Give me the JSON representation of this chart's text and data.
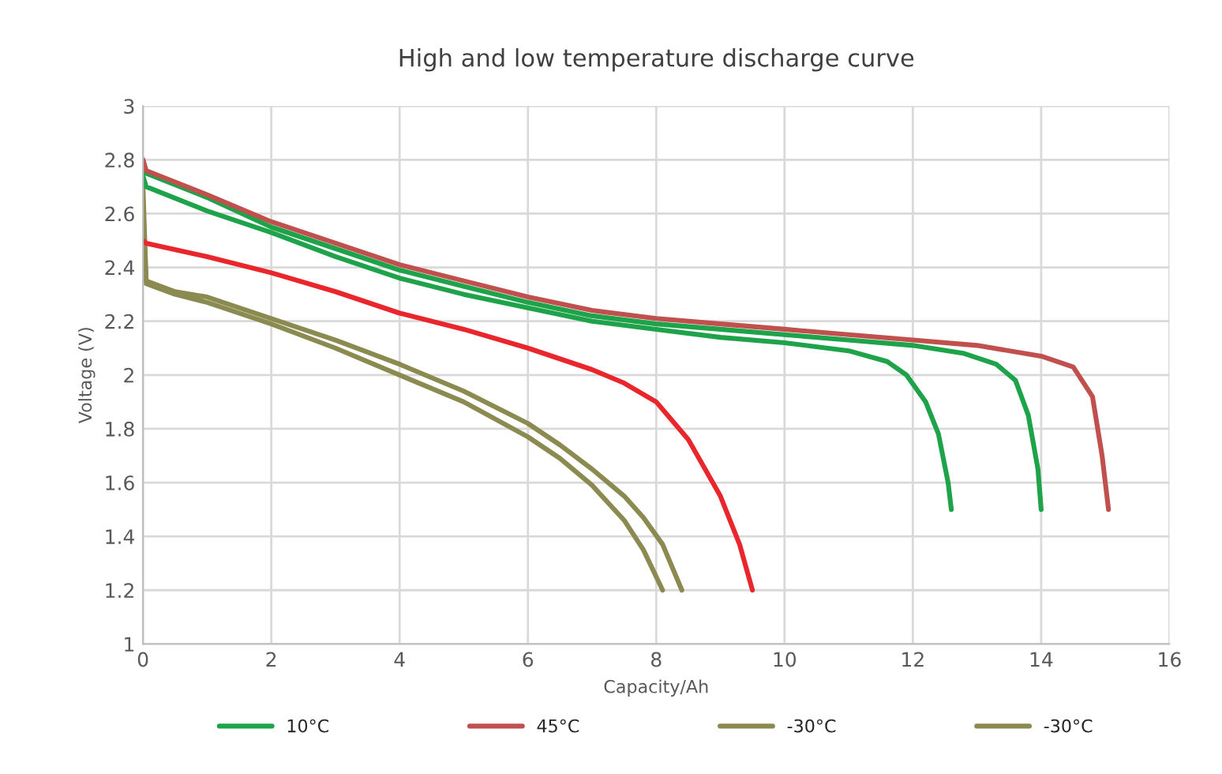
{
  "chart_data": {
    "type": "line",
    "title": "High and low temperature discharge curve",
    "xlabel": "Capacity/Ah",
    "ylabel": "Voltage (V)",
    "xlim": [
      0,
      16
    ],
    "xticks": [
      0,
      2,
      4,
      6,
      8,
      10,
      12,
      14,
      16
    ],
    "ylim": [
      1,
      3
    ],
    "yticks": [
      1,
      1.2,
      1.4,
      1.6,
      1.8,
      2,
      2.2,
      2.4,
      2.6,
      2.8,
      3
    ],
    "grid": true,
    "legend": "bottom",
    "marker": "none",
    "line_style": "solid",
    "series": [
      {
        "name": "10°C",
        "color": "#1fa34a",
        "x": [
          0,
          0.05,
          1,
          2,
          3,
          4,
          5,
          6,
          7,
          8,
          9,
          10,
          11,
          12,
          12.8,
          13.3,
          13.6,
          13.8,
          13.95,
          14
        ],
        "values": [
          2.8,
          2.75,
          2.66,
          2.55,
          2.47,
          2.39,
          2.33,
          2.27,
          2.22,
          2.19,
          2.17,
          2.15,
          2.13,
          2.11,
          2.08,
          2.04,
          1.98,
          1.85,
          1.65,
          1.5
        ]
      },
      {
        "name": "45°C",
        "color": "#c0504d",
        "x": [
          0,
          0.05,
          1,
          2,
          3,
          4,
          5,
          6,
          7,
          8,
          9,
          10,
          11,
          12,
          13,
          14,
          14.5,
          14.8,
          14.95,
          15.05
        ],
        "values": [
          2.8,
          2.76,
          2.67,
          2.57,
          2.49,
          2.41,
          2.35,
          2.29,
          2.24,
          2.21,
          2.19,
          2.17,
          2.15,
          2.13,
          2.11,
          2.07,
          2.03,
          1.92,
          1.7,
          1.5
        ]
      },
      {
        "name": "-30°C",
        "color": "#8b8a50",
        "x": [
          0,
          0.05,
          0.5,
          1,
          2,
          3,
          4,
          5,
          6,
          6.5,
          7,
          7.5,
          7.8,
          8.1
        ],
        "values": [
          2.6,
          2.34,
          2.3,
          2.27,
          2.19,
          2.1,
          2.0,
          1.9,
          1.77,
          1.69,
          1.59,
          1.46,
          1.35,
          1.2
        ]
      },
      {
        "name": "-30°C",
        "color": "#8b8a50",
        "x": [
          0,
          0.05,
          0.5,
          1,
          2,
          3,
          4,
          5,
          6,
          6.5,
          7,
          7.5,
          7.8,
          8.1,
          8.4
        ],
        "values": [
          2.7,
          2.35,
          2.31,
          2.29,
          2.21,
          2.13,
          2.04,
          1.94,
          1.82,
          1.74,
          1.65,
          1.55,
          1.47,
          1.37,
          1.2
        ]
      },
      {
        "color": "#1fa34a",
        "x": [
          0,
          0.05,
          1,
          2,
          3,
          4,
          5,
          6,
          7,
          8,
          9,
          10,
          11,
          11.6,
          11.9,
          12.2,
          12.4,
          12.55,
          12.6
        ],
        "values": [
          2.74,
          2.7,
          2.61,
          2.53,
          2.44,
          2.36,
          2.3,
          2.25,
          2.2,
          2.17,
          2.14,
          2.12,
          2.09,
          2.05,
          2.0,
          1.9,
          1.78,
          1.6,
          1.5
        ]
      },
      {
        "color": "#e8262c",
        "x": [
          0,
          0.05,
          1,
          2,
          3,
          4,
          5,
          6,
          7,
          7.5,
          8,
          8.5,
          9,
          9.3,
          9.5
        ],
        "values": [
          2.5,
          2.49,
          2.44,
          2.38,
          2.31,
          2.23,
          2.17,
          2.1,
          2.02,
          1.97,
          1.9,
          1.76,
          1.55,
          1.37,
          1.2
        ]
      }
    ]
  }
}
